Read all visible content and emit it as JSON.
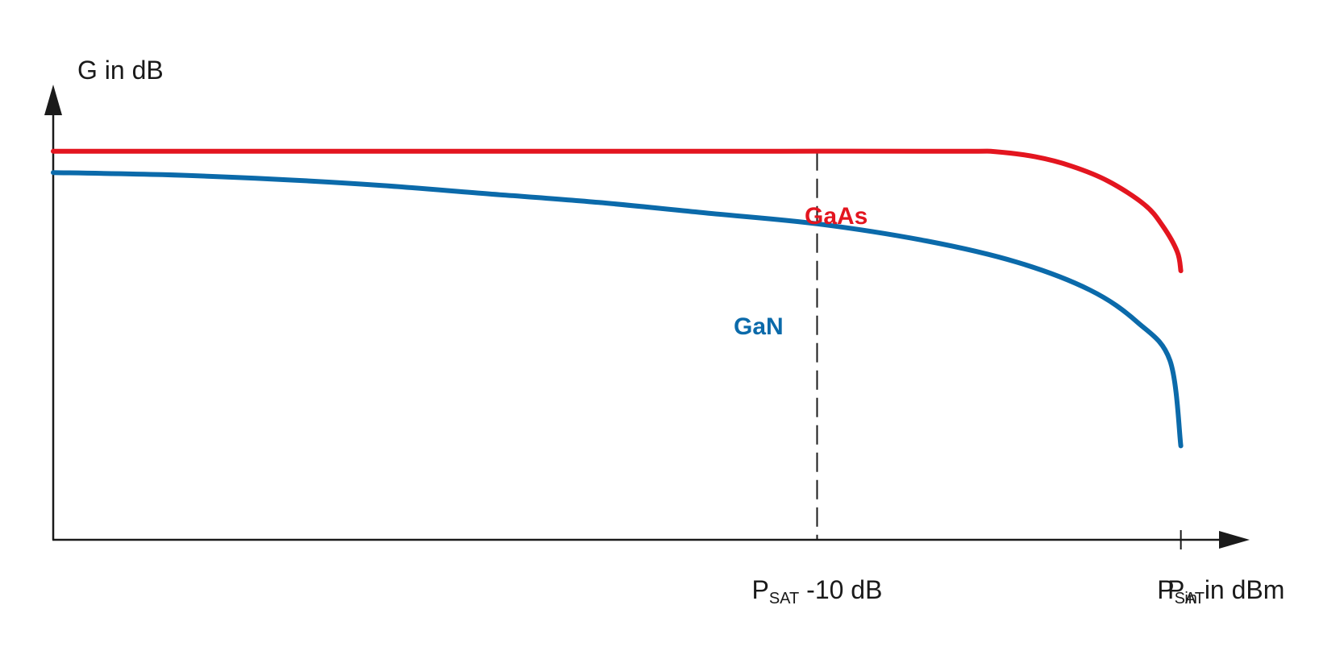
{
  "chart_data": {
    "type": "line",
    "ylabel": "G in dB",
    "xlabel": {
      "main": "P",
      "sub": "in",
      "rest": " in dBm"
    },
    "xticks": [
      {
        "main": "P",
        "sub": "SAT",
        "rest": " -10 dB",
        "x": -10
      },
      {
        "main": "P",
        "sub": "SAT",
        "rest": "",
        "x": 0
      }
    ],
    "xlim": [
      -31,
      3
    ],
    "ylim": [
      0,
      10
    ],
    "grid": false,
    "reference_line": {
      "x": -10,
      "style": "dashed"
    },
    "series": [
      {
        "name": "GaAs",
        "color": "#e3151f",
        "points": [
          [
            -31,
            9.1
          ],
          [
            -26,
            9.1
          ],
          [
            -21,
            9.1
          ],
          [
            -16,
            9.1
          ],
          [
            -11,
            9.1
          ],
          [
            -6,
            9.1
          ],
          [
            -5.1,
            9.09
          ],
          [
            -4,
            8.97
          ],
          [
            -3,
            8.75
          ],
          [
            -2,
            8.4
          ],
          [
            -1,
            7.85
          ],
          [
            -0.5,
            7.35
          ],
          [
            -0.1,
            6.75
          ],
          [
            0,
            6.3
          ]
        ]
      },
      {
        "name": "GaN",
        "color": "#0b6aaa",
        "points": [
          [
            -31,
            8.6
          ],
          [
            -28,
            8.55
          ],
          [
            -25,
            8.45
          ],
          [
            -22,
            8.3
          ],
          [
            -19,
            8.1
          ],
          [
            -16,
            7.9
          ],
          [
            -13,
            7.65
          ],
          [
            -10,
            7.4
          ],
          [
            -7,
            7.0
          ],
          [
            -4.5,
            6.5
          ],
          [
            -2.5,
            5.85
          ],
          [
            -1.2,
            5.1
          ],
          [
            -0.3,
            4.2
          ],
          [
            0,
            2.2
          ]
        ]
      }
    ]
  }
}
